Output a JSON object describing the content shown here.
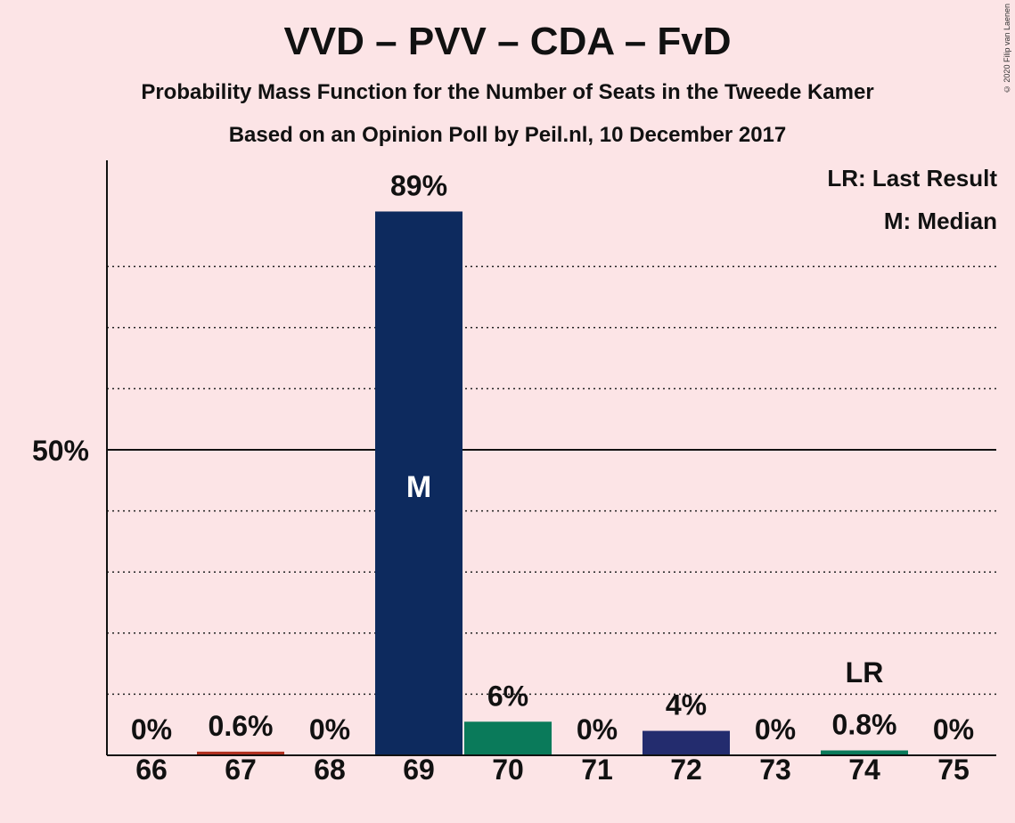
{
  "header": {
    "title": "VVD – PVV – CDA – FvD",
    "subtitle": "Probability Mass Function for the Number of Seats in the Tweede Kamer",
    "subtitle2": "Based on an Opinion Poll by Peil.nl, 10 December 2017",
    "copyright": "© 2020 Filip van Laenen"
  },
  "legend": {
    "lr": "LR: Last Result",
    "median": "M: Median"
  },
  "chart_data": {
    "type": "bar",
    "categories": [
      "66",
      "67",
      "68",
      "69",
      "70",
      "71",
      "72",
      "73",
      "74",
      "75"
    ],
    "values": [
      0,
      0.6,
      0,
      89,
      5.5,
      0,
      4,
      0,
      0.8,
      0
    ],
    "value_labels": [
      "0%",
      "0.6%",
      "0%",
      "89%",
      "6%",
      "0%",
      "4%",
      "0%",
      "0.8%",
      "0%"
    ],
    "colors": [
      "#0f2d63",
      "#b03020",
      "#0f2d63",
      "#0d2a5e",
      "#0a7a5a",
      "#0f2d63",
      "#232c6e",
      "#0f2d63",
      "#0a7a5a",
      "#0f2d63"
    ],
    "ylim": [
      0,
      100
    ],
    "y_ticks": [
      {
        "value": 50,
        "label": "50%"
      }
    ],
    "gridlines": [
      10,
      20,
      30,
      40,
      60,
      70,
      80
    ],
    "median_index": 3,
    "median_label": "M",
    "last_result_index": 8,
    "last_result_label": "LR",
    "xlabel": "",
    "ylabel": ""
  }
}
